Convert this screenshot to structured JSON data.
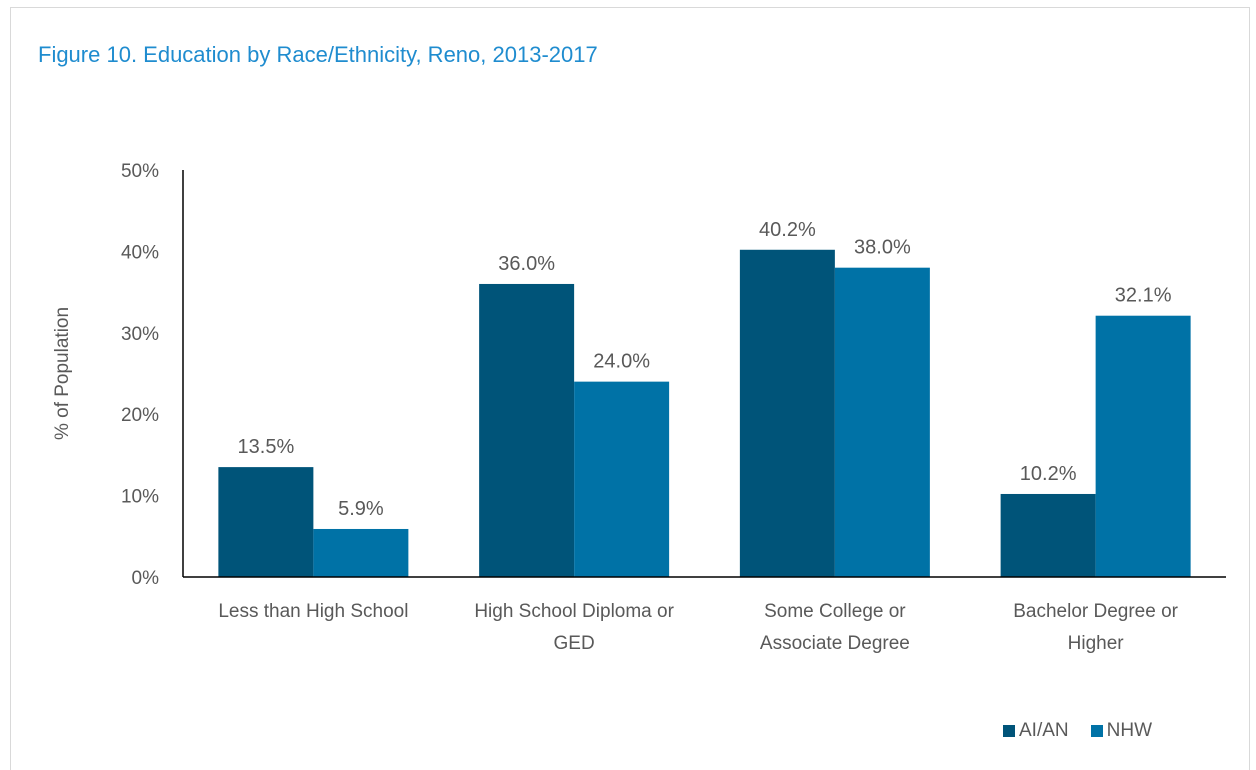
{
  "title": "Figure 10. Education by Race/Ethnicity, Reno, 2013-2017",
  "chart_data": {
    "type": "bar",
    "title": "Figure 10. Education by Race/Ethnicity, Reno, 2013-2017",
    "ylabel": "% of Population",
    "xlabel": "",
    "ylim": [
      0,
      50
    ],
    "yticks": [
      "0%",
      "10%",
      "20%",
      "30%",
      "40%",
      "50%"
    ],
    "grid": false,
    "legend_position": "bottom-right",
    "categories": [
      [
        "Less than High School"
      ],
      [
        "High School Diploma or",
        "GED"
      ],
      [
        "Some College or",
        "Associate Degree"
      ],
      [
        "Bachelor Degree or",
        "Higher"
      ]
    ],
    "series": [
      {
        "name": "AI/AN",
        "color": "#005479",
        "values": [
          13.5,
          36.0,
          40.2,
          10.2
        ],
        "labels": [
          "13.5%",
          "36.0%",
          "40.2%",
          "10.2%"
        ]
      },
      {
        "name": "NHW",
        "color": "#0072a6",
        "values": [
          5.9,
          24.0,
          38.0,
          32.1
        ],
        "labels": [
          "5.9%",
          "24.0%",
          "38.0%",
          "32.1%"
        ]
      }
    ]
  }
}
